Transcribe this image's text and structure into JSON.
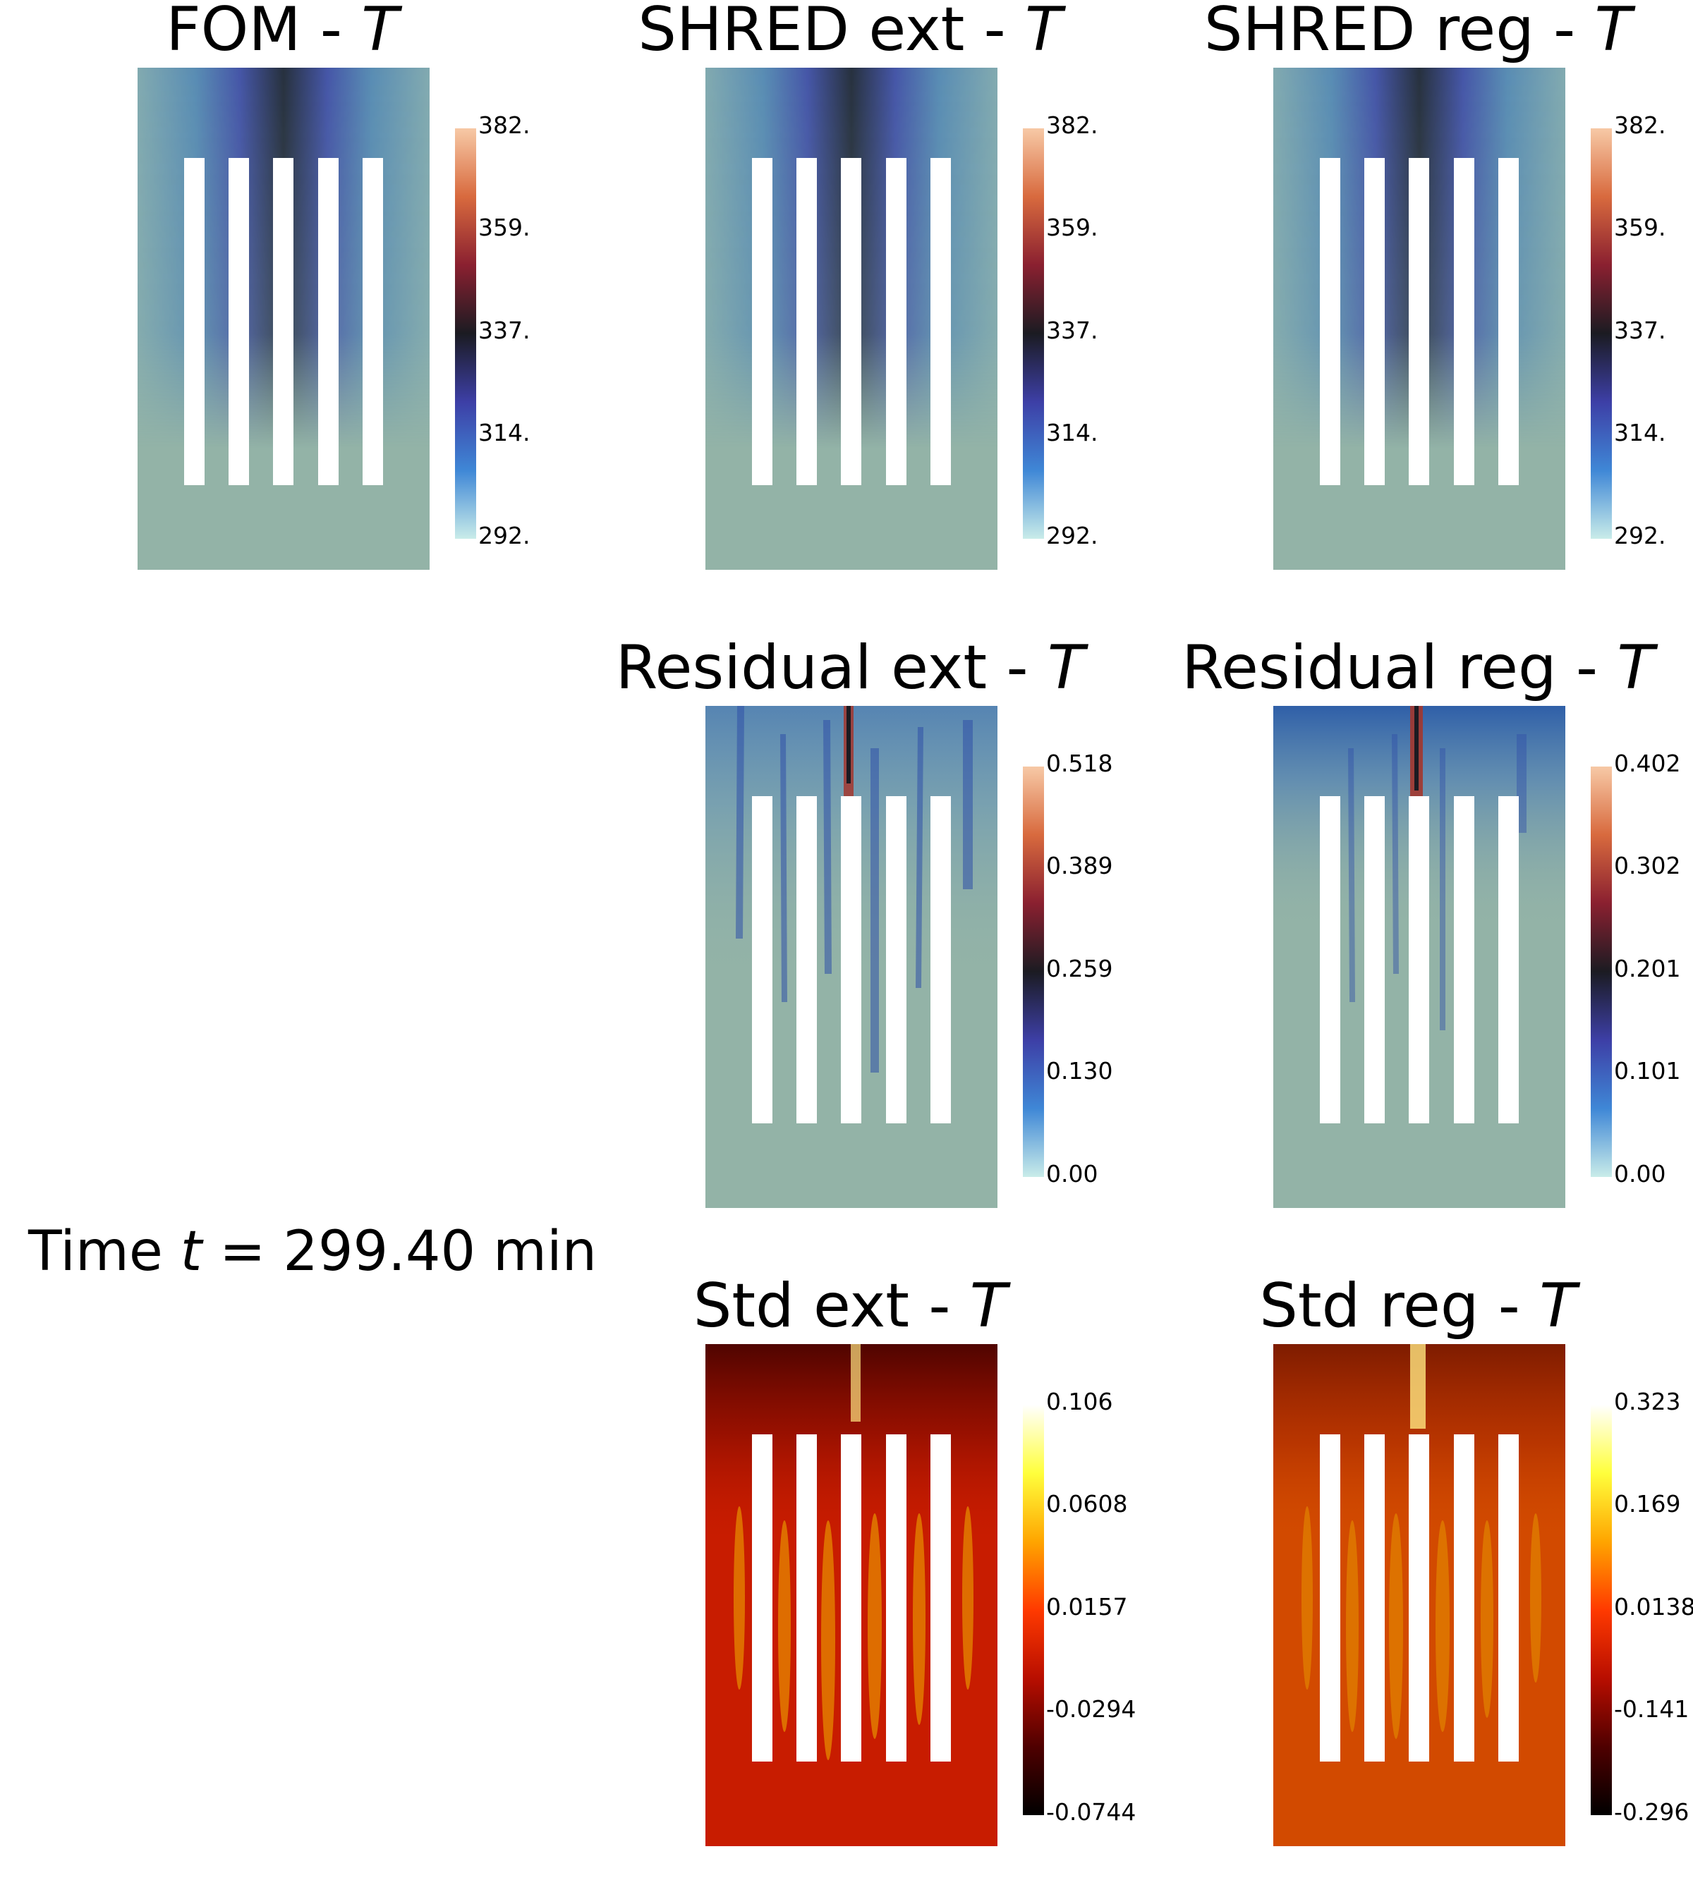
{
  "time_label": {
    "prefix": "Time ",
    "variable": "t",
    "equals": " = ",
    "value": "299.40",
    "unit": " min"
  },
  "colormaps": {
    "temperature": [
      "#c9ece9",
      "#3f87d6",
      "#3d3fa6",
      "#1b1b22",
      "#8a2030",
      "#d86a3e",
      "#f7c9a6"
    ],
    "std": [
      "#000000",
      "#4f0000",
      "#b80e00",
      "#ff3a00",
      "#ffa500",
      "#ffff3c",
      "#ffffff"
    ]
  },
  "panels": [
    {
      "id": "fom",
      "title": "FOM - ",
      "variable": "T",
      "colormap": "temperature",
      "ticks": [
        "382.",
        "359.",
        "337.",
        "314.",
        "292."
      ]
    },
    {
      "id": "shred-ext",
      "title": "SHRED ext - ",
      "variable": "T",
      "colormap": "temperature",
      "ticks": [
        "382.",
        "359.",
        "337.",
        "314.",
        "292."
      ]
    },
    {
      "id": "shred-reg",
      "title": "SHRED reg - ",
      "variable": "T",
      "colormap": "temperature",
      "ticks": [
        "382.",
        "359.",
        "337.",
        "314.",
        "292."
      ]
    },
    {
      "id": "residual-ext",
      "title": "Residual ext - ",
      "variable": "T",
      "colormap": "temperature",
      "ticks": [
        "0.518",
        "0.389",
        "0.259",
        "0.130",
        "0.00"
      ]
    },
    {
      "id": "residual-reg",
      "title": "Residual reg - ",
      "variable": "T",
      "colormap": "temperature",
      "ticks": [
        "0.402",
        "0.302",
        "0.201",
        "0.101",
        "0.00"
      ]
    },
    {
      "id": "std-ext",
      "title": "Std ext - ",
      "variable": "T",
      "colormap": "std",
      "ticks": [
        "0.106",
        "0.0608",
        "0.0157",
        "-0.0294",
        "-0.0744"
      ]
    },
    {
      "id": "std-reg",
      "title": "Std reg - ",
      "variable": "T",
      "colormap": "std",
      "ticks": [
        "0.323",
        "0.169",
        "0.0138",
        "-0.141",
        "-0.296"
      ]
    }
  ]
}
